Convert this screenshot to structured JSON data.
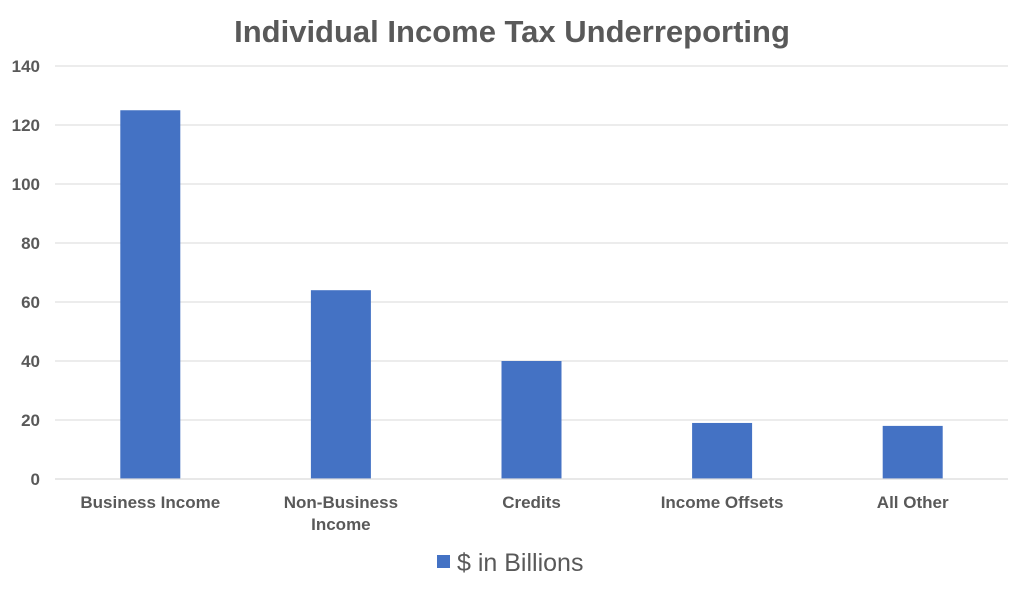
{
  "chart_data": {
    "type": "bar",
    "title": "Individual Income Tax Underreporting",
    "categories": [
      "Business Income",
      "Non-Business Income",
      "Credits",
      "Income Offsets",
      "All Other"
    ],
    "series": [
      {
        "name": "$ in Billions",
        "values": [
          125,
          64,
          40,
          19,
          18
        ]
      }
    ],
    "xlabel": "",
    "ylabel": "",
    "ylim": [
      0,
      140
    ],
    "yticks": [
      0,
      20,
      40,
      60,
      80,
      100,
      120,
      140
    ],
    "grid": true,
    "legend": "bottom",
    "colors": {
      "bar": "#4472C4",
      "grid": "#d9d9d9",
      "text": "#595959"
    }
  }
}
